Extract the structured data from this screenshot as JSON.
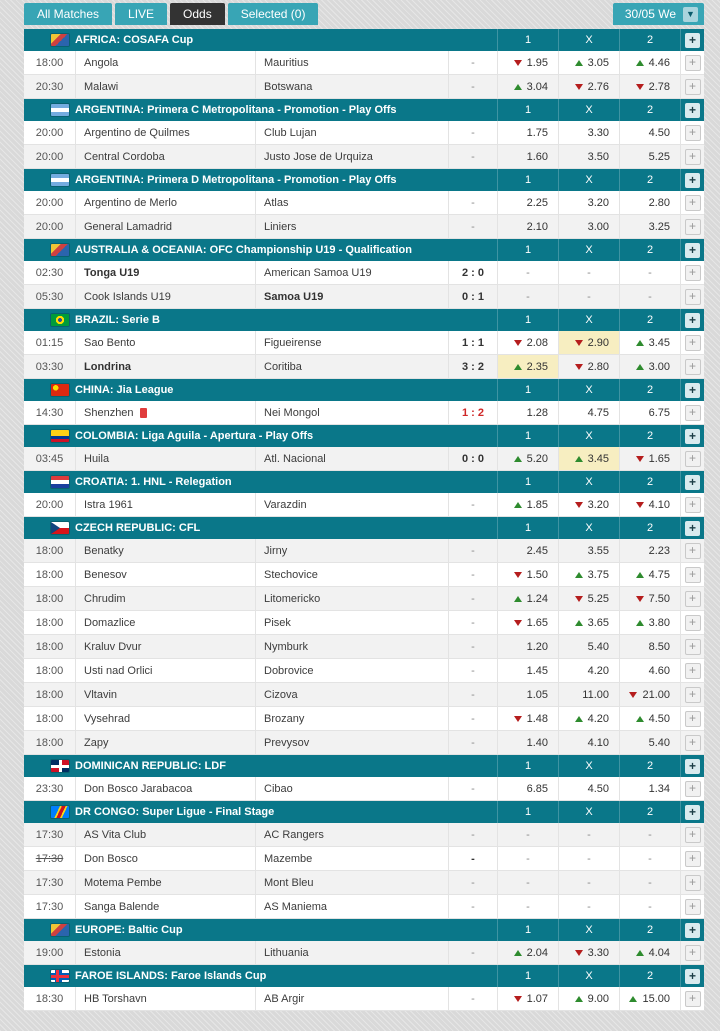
{
  "tabs": [
    {
      "label": "All Matches",
      "active": false
    },
    {
      "label": "LIVE",
      "active": false
    },
    {
      "label": "Odds",
      "active": true
    },
    {
      "label": "Selected (0)",
      "active": false
    }
  ],
  "date_selector": {
    "label": "30/05 We",
    "icon": "chevron-down-icon"
  },
  "odds_columns": [
    "1",
    "X",
    "2"
  ],
  "colors": {
    "header_teal": "#0a7789",
    "tab_teal": "#38a5b5",
    "active_tab": "#333333",
    "odds_highlight": "#f7eec1",
    "odds_up": "#2e8b2e",
    "odds_down": "#b51d1d",
    "live_score_red": "#cf2727"
  },
  "sections": [
    {
      "league": "AFRICA: COSAFA Cup",
      "flag": "world",
      "matches": [
        {
          "time": "18:00",
          "home": "Angola",
          "away": "Mauritius",
          "score": "-",
          "odds": [
            {
              "v": "1.95",
              "dir": "down"
            },
            {
              "v": "3.05",
              "dir": "up"
            },
            {
              "v": "4.46",
              "dir": "up"
            }
          ]
        },
        {
          "time": "20:30",
          "home": "Malawi",
          "away": "Botswana",
          "score": "-",
          "odds": [
            {
              "v": "3.04",
              "dir": "up"
            },
            {
              "v": "2.76",
              "dir": "down"
            },
            {
              "v": "2.78",
              "dir": "down"
            }
          ]
        }
      ]
    },
    {
      "league": "ARGENTINA: Primera C Metropolitana - Promotion - Play Offs",
      "flag": "argentina",
      "matches": [
        {
          "time": "20:00",
          "home": "Argentino de Quilmes",
          "away": "Club Lujan",
          "score": "-",
          "odds": [
            {
              "v": "1.75"
            },
            {
              "v": "3.30"
            },
            {
              "v": "4.50"
            }
          ]
        },
        {
          "time": "20:00",
          "home": "Central Cordoba",
          "away": "Justo Jose de Urquiza",
          "score": "-",
          "odds": [
            {
              "v": "1.60"
            },
            {
              "v": "3.50"
            },
            {
              "v": "5.25"
            }
          ]
        }
      ]
    },
    {
      "league": "ARGENTINA: Primera D Metropolitana - Promotion - Play Offs",
      "flag": "argentina",
      "matches": [
        {
          "time": "20:00",
          "home": "Argentino de Merlo",
          "away": "Atlas",
          "score": "-",
          "odds": [
            {
              "v": "2.25"
            },
            {
              "v": "3.20"
            },
            {
              "v": "2.80"
            }
          ]
        },
        {
          "time": "20:00",
          "home": "General Lamadrid",
          "away": "Liniers",
          "score": "-",
          "odds": [
            {
              "v": "2.10"
            },
            {
              "v": "3.00"
            },
            {
              "v": "3.25"
            }
          ]
        }
      ]
    },
    {
      "league": "AUSTRALIA & OCEANIA: OFC Championship U19 - Qualification",
      "flag": "world",
      "matches": [
        {
          "time": "02:30",
          "home": "Tonga U19",
          "home_bold": true,
          "away": "American Samoa U19",
          "score": "2 : 0",
          "score_bold": true,
          "odds": [
            {
              "v": "-"
            },
            {
              "v": "-"
            },
            {
              "v": "-"
            }
          ]
        },
        {
          "time": "05:30",
          "home": "Cook Islands U19",
          "away": "Samoa U19",
          "away_bold": true,
          "score": "0 : 1",
          "score_bold": true,
          "odds": [
            {
              "v": "-"
            },
            {
              "v": "-"
            },
            {
              "v": "-"
            }
          ]
        }
      ]
    },
    {
      "league": "BRAZIL: Serie B",
      "flag": "brazil",
      "matches": [
        {
          "time": "01:15",
          "home": "Sao Bento",
          "away": "Figueirense",
          "score": "1 : 1",
          "score_bold": true,
          "odds": [
            {
              "v": "2.08",
              "dir": "down"
            },
            {
              "v": "2.90",
              "dir": "down",
              "hl": true
            },
            {
              "v": "3.45",
              "dir": "up"
            }
          ]
        },
        {
          "time": "03:30",
          "home": "Londrina",
          "home_bold": true,
          "away": "Coritiba",
          "score": "3 : 2",
          "score_bold": true,
          "odds": [
            {
              "v": "2.35",
              "dir": "up",
              "hl": true
            },
            {
              "v": "2.80",
              "dir": "down"
            },
            {
              "v": "3.00",
              "dir": "up"
            }
          ]
        }
      ]
    },
    {
      "league": "CHINA: Jia League",
      "flag": "china",
      "matches": [
        {
          "time": "14:30",
          "home": "Shenzhen",
          "home_redcard": true,
          "away": "Nei Mongol",
          "score": "1 : 2",
          "score_live": true,
          "odds": [
            {
              "v": "1.28"
            },
            {
              "v": "4.75"
            },
            {
              "v": "6.75"
            }
          ]
        }
      ]
    },
    {
      "league": "COLOMBIA: Liga Aguila - Apertura - Play Offs",
      "flag": "colombia",
      "matches": [
        {
          "time": "03:45",
          "home": "Huila",
          "away": "Atl. Nacional",
          "score": "0 : 0",
          "score_bold": true,
          "odds": [
            {
              "v": "5.20",
              "dir": "up"
            },
            {
              "v": "3.45",
              "dir": "up",
              "hl": true
            },
            {
              "v": "1.65",
              "dir": "down"
            }
          ]
        }
      ]
    },
    {
      "league": "CROATIA: 1. HNL - Relegation",
      "flag": "croatia",
      "matches": [
        {
          "time": "20:00",
          "home": "Istra 1961",
          "away": "Varazdin",
          "score": "-",
          "odds": [
            {
              "v": "1.85",
              "dir": "up"
            },
            {
              "v": "3.20",
              "dir": "down"
            },
            {
              "v": "4.10",
              "dir": "down"
            }
          ]
        }
      ]
    },
    {
      "league": "CZECH REPUBLIC: CFL",
      "flag": "czech",
      "matches": [
        {
          "time": "18:00",
          "home": "Benatky",
          "away": "Jirny",
          "score": "-",
          "odds": [
            {
              "v": "2.45"
            },
            {
              "v": "3.55"
            },
            {
              "v": "2.23"
            }
          ]
        },
        {
          "time": "18:00",
          "home": "Benesov",
          "away": "Stechovice",
          "score": "-",
          "odds": [
            {
              "v": "1.50",
              "dir": "down"
            },
            {
              "v": "3.75",
              "dir": "up"
            },
            {
              "v": "4.75",
              "dir": "up"
            }
          ]
        },
        {
          "time": "18:00",
          "home": "Chrudim",
          "away": "Litomericko",
          "score": "-",
          "odds": [
            {
              "v": "1.24",
              "dir": "up"
            },
            {
              "v": "5.25",
              "dir": "down"
            },
            {
              "v": "7.50",
              "dir": "down"
            }
          ]
        },
        {
          "time": "18:00",
          "home": "Domazlice",
          "away": "Pisek",
          "score": "-",
          "odds": [
            {
              "v": "1.65",
              "dir": "down"
            },
            {
              "v": "3.65",
              "dir": "up"
            },
            {
              "v": "3.80",
              "dir": "up"
            }
          ]
        },
        {
          "time": "18:00",
          "home": "Kraluv Dvur",
          "away": "Nymburk",
          "score": "-",
          "odds": [
            {
              "v": "1.20"
            },
            {
              "v": "5.40"
            },
            {
              "v": "8.50"
            }
          ]
        },
        {
          "time": "18:00",
          "home": "Usti nad Orlici",
          "away": "Dobrovice",
          "score": "-",
          "odds": [
            {
              "v": "1.45"
            },
            {
              "v": "4.20"
            },
            {
              "v": "4.60"
            }
          ]
        },
        {
          "time": "18:00",
          "home": "Vltavin",
          "away": "Cizova",
          "score": "-",
          "odds": [
            {
              "v": "1.05"
            },
            {
              "v": "11.00"
            },
            {
              "v": "21.00",
              "dir": "down"
            }
          ]
        },
        {
          "time": "18:00",
          "home": "Vysehrad",
          "away": "Brozany",
          "score": "-",
          "odds": [
            {
              "v": "1.48",
              "dir": "down"
            },
            {
              "v": "4.20",
              "dir": "up"
            },
            {
              "v": "4.50",
              "dir": "up"
            }
          ]
        },
        {
          "time": "18:00",
          "home": "Zapy",
          "away": "Prevysov",
          "score": "-",
          "odds": [
            {
              "v": "1.40"
            },
            {
              "v": "4.10"
            },
            {
              "v": "5.40"
            }
          ]
        }
      ]
    },
    {
      "league": "DOMINICAN REPUBLIC: LDF",
      "flag": "dominican",
      "matches": [
        {
          "time": "23:30",
          "home": "Don Bosco Jarabacoa",
          "away": "Cibao",
          "score": "-",
          "odds": [
            {
              "v": "6.85"
            },
            {
              "v": "4.50"
            },
            {
              "v": "1.34"
            }
          ]
        }
      ]
    },
    {
      "league": "DR CONGO: Super Ligue - Final Stage",
      "flag": "drcongo",
      "matches": [
        {
          "time": "17:30",
          "home": "AS Vita Club",
          "away": "AC Rangers",
          "score": "-",
          "odds": [
            {
              "v": "-"
            },
            {
              "v": "-"
            },
            {
              "v": "-"
            }
          ]
        },
        {
          "time": "17:30",
          "time_struck": true,
          "home": "Don Bosco",
          "away": "Mazembe",
          "score": "-",
          "score_bold": true,
          "odds": [
            {
              "v": "-"
            },
            {
              "v": "-"
            },
            {
              "v": "-"
            }
          ]
        },
        {
          "time": "17:30",
          "home": "Motema Pembe",
          "away": "Mont Bleu",
          "score": "-",
          "odds": [
            {
              "v": "-"
            },
            {
              "v": "-"
            },
            {
              "v": "-"
            }
          ]
        },
        {
          "time": "17:30",
          "home": "Sanga Balende",
          "away": "AS Maniema",
          "score": "-",
          "odds": [
            {
              "v": "-"
            },
            {
              "v": "-"
            },
            {
              "v": "-"
            }
          ]
        }
      ]
    },
    {
      "league": "EUROPE: Baltic Cup",
      "flag": "world",
      "matches": [
        {
          "time": "19:00",
          "home": "Estonia",
          "away": "Lithuania",
          "score": "-",
          "odds": [
            {
              "v": "2.04",
              "dir": "up"
            },
            {
              "v": "3.30",
              "dir": "down"
            },
            {
              "v": "4.04",
              "dir": "up"
            }
          ]
        }
      ]
    },
    {
      "league": "FAROE ISLANDS: Faroe Islands Cup",
      "flag": "faroe",
      "matches": [
        {
          "time": "18:30",
          "home": "HB Torshavn",
          "away": "AB Argir",
          "score": "-",
          "odds": [
            {
              "v": "1.07",
              "dir": "down"
            },
            {
              "v": "9.00",
              "dir": "up"
            },
            {
              "v": "15.00",
              "dir": "up"
            }
          ]
        }
      ]
    }
  ]
}
